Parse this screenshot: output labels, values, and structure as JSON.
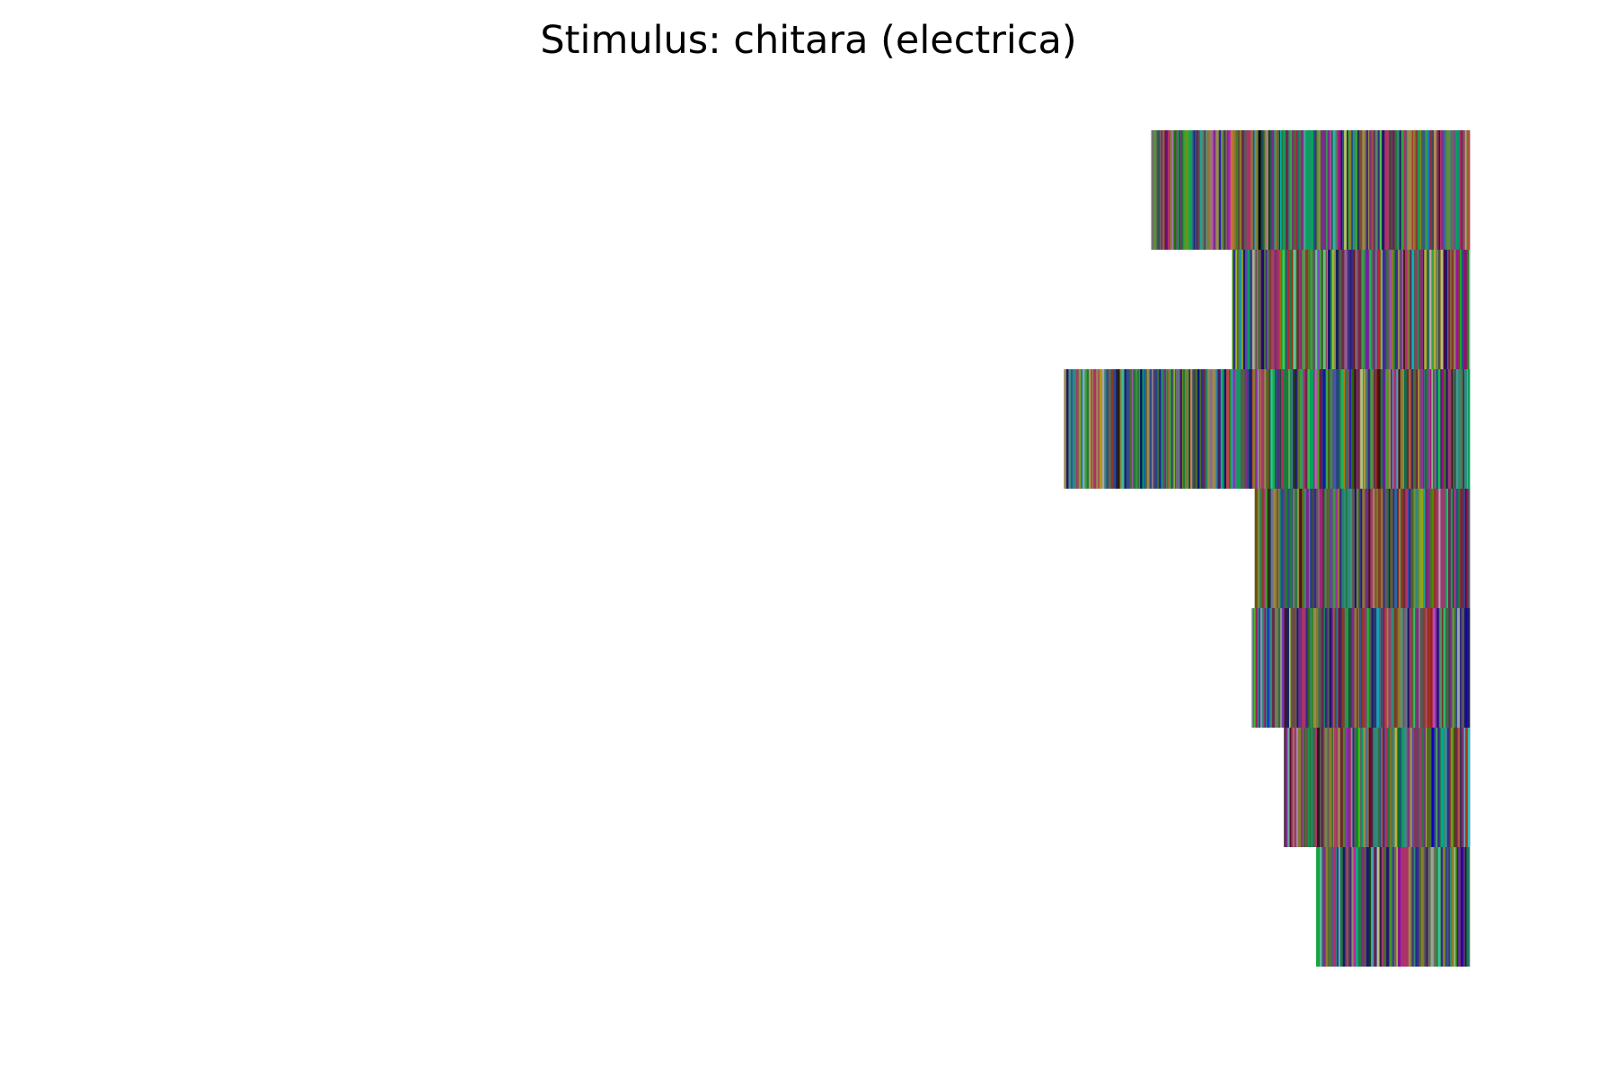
{
  "chart_data": {
    "type": "bar",
    "orientation": "horizontal",
    "title": "Stimulus: chitara (electrica)",
    "xlabel": "",
    "ylabel": "",
    "axes_visible": false,
    "grid": false,
    "legend": "none",
    "xlim": [
      0,
      1
    ],
    "rows": 7,
    "bars": [
      {
        "start": 0.712,
        "end": 0.909
      },
      {
        "start": 0.762,
        "end": 0.909
      },
      {
        "start": 0.658,
        "end": 0.909
      },
      {
        "start": 0.776,
        "end": 0.909
      },
      {
        "start": 0.774,
        "end": 0.909
      },
      {
        "start": 0.794,
        "end": 0.909
      },
      {
        "start": 0.814,
        "end": 0.909
      }
    ],
    "fill": "dense random vertical color stripes (multicolor)",
    "palette": [
      "#7a2e8a",
      "#1f7a3a",
      "#8a7a2e",
      "#2e4a8a",
      "#a03a6a",
      "#3aa03a",
      "#5a5a5a",
      "#1a1a6a",
      "#8a3a2a",
      "#2e8a7a",
      "#6a2a4a",
      "#4a6a2a",
      "#0aa05a",
      "#b0306a",
      "#3a2a8a",
      "#9a8a4a"
    ]
  }
}
